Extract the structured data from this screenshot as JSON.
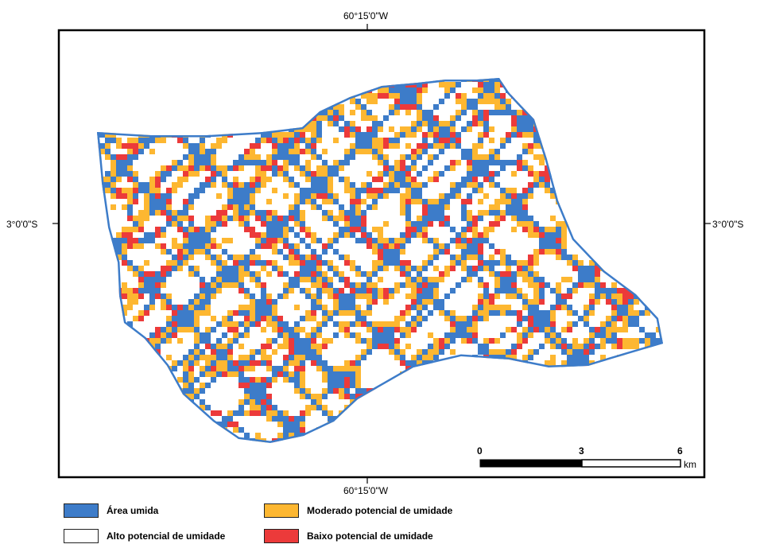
{
  "map": {
    "graticule": {
      "top_longitude": "60°15'0\"W",
      "bottom_longitude": "60°15'0\"W",
      "left_latitude": "3°0'0\"S",
      "right_latitude": "3°0'0\"S"
    },
    "scale_bar": {
      "ticks": [
        "0",
        "3",
        "6"
      ],
      "unit": "km"
    },
    "colors": {
      "area_umida": "#3d7cc9",
      "moderado": "#fdb731",
      "baixo": "#ec3a3a",
      "alto": "#ffffff",
      "frame": "#000000"
    }
  },
  "legend": {
    "items": [
      {
        "label": "Área umida",
        "color": "#3d7cc9"
      },
      {
        "label": "Moderado potencial de umidade",
        "color": "#fdb731"
      },
      {
        "label": "Alto potencial de umidade",
        "color": "#ffffff"
      },
      {
        "label": "Baixo potencial de umidade",
        "color": "#ec3a3a"
      }
    ]
  }
}
